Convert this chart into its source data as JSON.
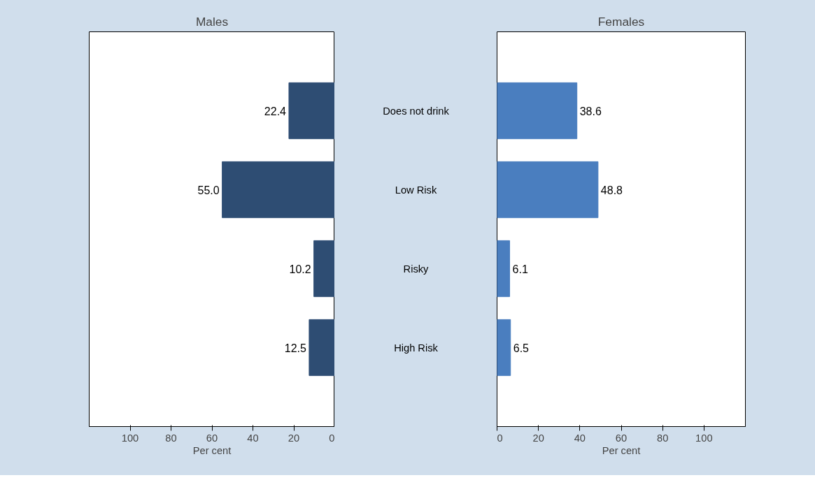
{
  "chart_data": [
    {
      "type": "bar",
      "orientation": "horizontal",
      "title": "Males",
      "xlabel": "Per cent",
      "categories": [
        "Does not drink",
        "Low Risk",
        "Risky",
        "High Risk"
      ],
      "values": [
        22.4,
        55.0,
        10.2,
        12.5
      ],
      "value_labels": [
        "22.4",
        "55.0",
        "10.2",
        "12.5"
      ],
      "color": "#2e4d73",
      "xlim": [
        120,
        0
      ],
      "xticks": [
        100,
        80,
        60,
        40,
        20,
        0
      ],
      "grid": false,
      "tick_labels": "x"
    },
    {
      "type": "bar",
      "orientation": "horizontal",
      "title": "Females",
      "xlabel": "Per cent",
      "categories": [
        null,
        null,
        null,
        null
      ],
      "values": [
        38.6,
        48.8,
        6.1,
        6.5
      ],
      "value_labels": [
        "38.6",
        "48.8",
        "6.1",
        "6.5"
      ],
      "color": "#4a7ebf",
      "xlim": [
        0,
        120
      ],
      "xticks": [
        0,
        20,
        40,
        60,
        80,
        100
      ],
      "grid": false,
      "tick_labels": "x"
    }
  ]
}
